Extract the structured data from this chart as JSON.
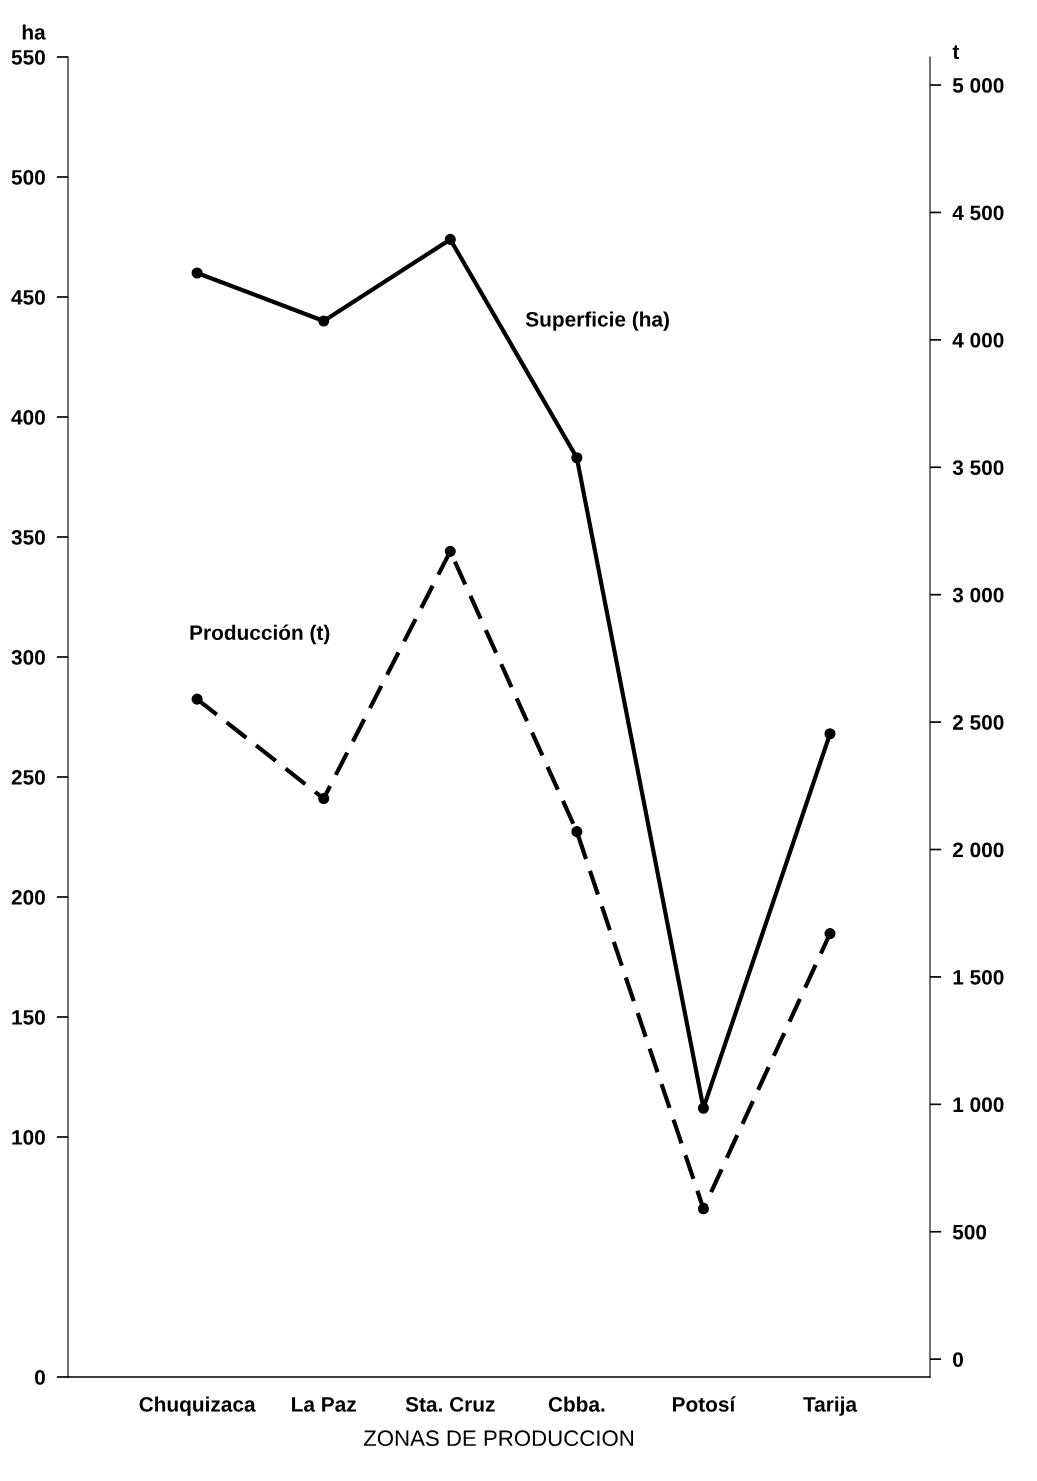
{
  "chart_data": {
    "type": "line",
    "xlabel": "ZONAS DE PRODUCCION",
    "ylabel": "ha",
    "y2label": "t",
    "categories": [
      "Chuquizaca",
      "La Paz",
      "Sta. Cruz",
      "Cbba.",
      "Potosí",
      "Tarija"
    ],
    "series": [
      {
        "name": "Superficie (ha)",
        "color": "#000000",
        "line_style": "solid",
        "values": [
          460,
          440,
          474,
          383,
          112,
          268
        ]
      },
      {
        "name": "Producción (t)",
        "color": "#000000",
        "line_style": "dashed",
        "axis": "y2",
        "values": [
          2590,
          2200,
          3170,
          2070,
          590,
          1670
        ]
      }
    ],
    "ylim": [
      0,
      550
    ],
    "yticks": [
      0,
      100,
      150,
      200,
      250,
      300,
      350,
      400,
      450,
      500,
      550
    ],
    "y2lim": [
      -70,
      5110
    ],
    "y2ticks": [
      0,
      500,
      {
        "value": 1000,
        "label": "1 000"
      },
      {
        "value": 1500,
        "label": "1 500"
      },
      {
        "value": 2000,
        "label": "2 000"
      },
      {
        "value": 2500,
        "label": "2 500"
      },
      {
        "value": 3000,
        "label": "3 000"
      },
      {
        "value": 3500,
        "label": "3 500"
      },
      {
        "value": 4000,
        "label": "4 000"
      },
      {
        "value": 4500,
        "label": "4 500"
      },
      {
        "value": 5000,
        "label": "5 000"
      }
    ],
    "marker": "circle",
    "grid": false,
    "legend": false
  }
}
